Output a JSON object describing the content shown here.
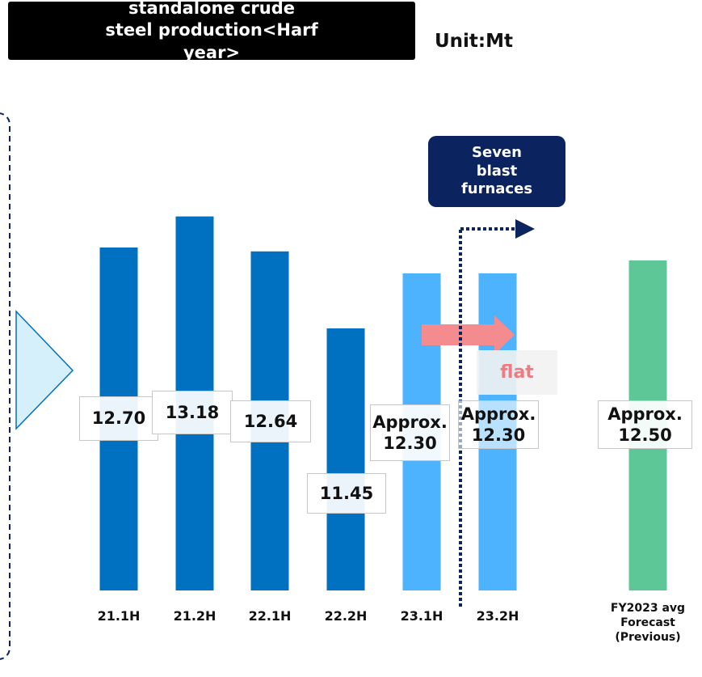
{
  "chart_data": {
    "type": "bar",
    "title": "standalone crude steel production<Harf year>",
    "unit_label": "Unit:Mt",
    "categories": [
      "21.1H",
      "21.2H",
      "22.1H",
      "22.2H",
      "23.1H",
      "23.2H",
      "FY2023 avg Forecast (Previous)"
    ],
    "values": [
      12.7,
      13.18,
      12.64,
      11.45,
      12.3,
      12.3,
      12.5
    ],
    "value_labels": [
      "12.70",
      "13.18",
      "12.64",
      "11.45",
      "Approx. 12.30",
      "Approx. 12.30",
      "Approx. 12.50"
    ],
    "colors": [
      "#0070c0",
      "#0070c0",
      "#0070c0",
      "#0070c0",
      "#4db3ff",
      "#4db3ff",
      "#5ec798"
    ],
    "ylim": [
      7.4,
      13.5
    ],
    "annotations": [
      "Seven blast furnaces",
      "flat"
    ]
  }
}
